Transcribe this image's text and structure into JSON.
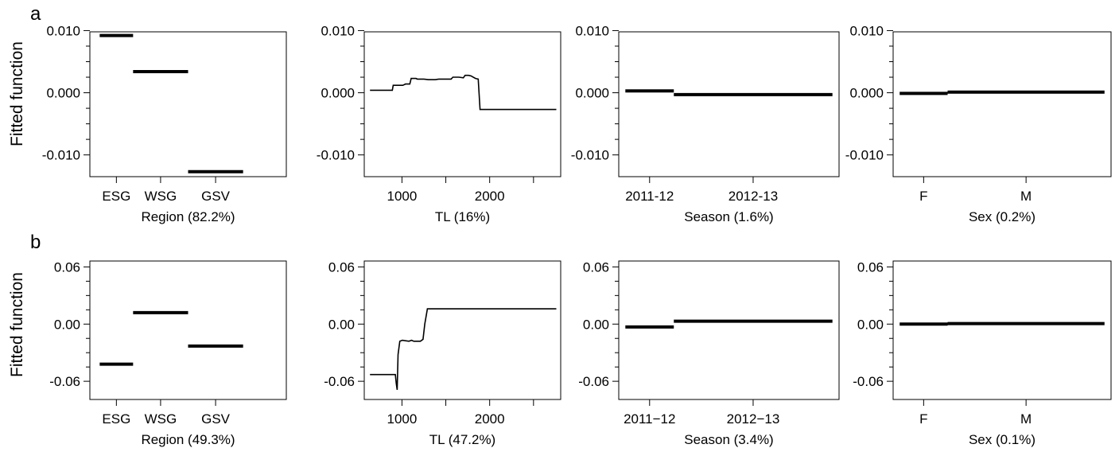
{
  "figure": {
    "ylabel": "Fitted function"
  },
  "rows": [
    {
      "letter": "a",
      "yticks": [
        {
          "value": 0.01,
          "label": "0.010"
        },
        {
          "value": 0.0,
          "label": "0.000"
        },
        {
          "value": -0.01,
          "label": "-0.010"
        }
      ]
    },
    {
      "letter": "b",
      "yticks": [
        {
          "value": 0.06,
          "label": "0.06"
        },
        {
          "value": 0.0,
          "label": "0.00"
        },
        {
          "value": -0.06,
          "label": "-0.06"
        }
      ]
    }
  ],
  "chart_data": [
    {
      "panel": "a1",
      "type": "step-categorical",
      "xlabel": "Region  (82.2%)",
      "ylabel": "Fitted function",
      "ylim": [
        -0.0135,
        0.0098
      ],
      "categories": [
        "ESG",
        "WSG",
        "GSV"
      ],
      "values": [
        0.0092,
        0.0034,
        -0.0127
      ]
    },
    {
      "panel": "a2",
      "type": "line",
      "xlabel": "TL  (16%)",
      "ylim": [
        -0.0135,
        0.0098
      ],
      "xlim": [
        570,
        2810
      ],
      "xticks": [
        {
          "value": 1000,
          "label": "1000"
        },
        {
          "value": 1500,
          "label": ""
        },
        {
          "value": 2000,
          "label": "2000"
        },
        {
          "value": 2500,
          "label": ""
        }
      ],
      "x": [
        635,
        890,
        900,
        1010,
        1040,
        1090,
        1105,
        1160,
        1175,
        1250,
        1300,
        1380,
        1420,
        1500,
        1560,
        1580,
        1650,
        1700,
        1720,
        1760,
        1790,
        1800,
        1840,
        1870,
        1890,
        1905,
        2760
      ],
      "y": [
        0.0004,
        0.0004,
        0.0012,
        0.0012,
        0.0014,
        0.0014,
        0.0023,
        0.0023,
        0.0022,
        0.0022,
        0.0021,
        0.0021,
        0.0022,
        0.0022,
        0.0022,
        0.0025,
        0.0025,
        0.0024,
        0.0028,
        0.0028,
        0.0027,
        0.0026,
        0.0023,
        0.0022,
        -0.0027,
        -0.0027,
        -0.0027
      ]
    },
    {
      "panel": "a3",
      "type": "step-categorical",
      "xlabel": "Season  (1.6%)",
      "ylim": [
        -0.0135,
        0.0098
      ],
      "categories": [
        "2011-12",
        "2012-13"
      ],
      "values": [
        0.0003,
        -0.0003
      ]
    },
    {
      "panel": "a4",
      "type": "step-categorical",
      "xlabel": "Sex  (0.2%)",
      "ylim": [
        -0.0135,
        0.0098
      ],
      "categories": [
        "F",
        "M"
      ],
      "values": [
        -0.0001,
        0.0001
      ]
    },
    {
      "panel": "b1",
      "type": "step-categorical",
      "xlabel": "Region  (49.3%)",
      "ylabel": "Fitted function",
      "ylim": [
        -0.0791,
        0.0662
      ],
      "categories": [
        "ESG",
        "WSG",
        "GSV"
      ],
      "values": [
        -0.042,
        0.012,
        -0.023
      ]
    },
    {
      "panel": "b2",
      "type": "line",
      "xlabel": "TL  (47.2%)",
      "ylim": [
        -0.0791,
        0.0662
      ],
      "xlim": [
        570,
        2810
      ],
      "xticks": [
        {
          "value": 1000,
          "label": "1000"
        },
        {
          "value": 1500,
          "label": ""
        },
        {
          "value": 2000,
          "label": "2000"
        },
        {
          "value": 2500,
          "label": ""
        }
      ],
      "x": [
        635,
        925,
        935,
        945,
        955,
        975,
        1005,
        1080,
        1110,
        1135,
        1210,
        1240,
        1260,
        1290,
        1310,
        2760
      ],
      "y": [
        -0.053,
        -0.053,
        -0.062,
        -0.069,
        -0.032,
        -0.018,
        -0.017,
        -0.018,
        -0.017,
        -0.018,
        -0.018,
        -0.016,
        0.0,
        0.016,
        0.016,
        0.016
      ]
    },
    {
      "panel": "b3",
      "type": "step-categorical",
      "xlabel": "Season  (3.4%)",
      "ylim": [
        -0.0791,
        0.0662
      ],
      "categories": [
        "2011−12",
        "2012−13"
      ],
      "values": [
        -0.003,
        0.003
      ]
    },
    {
      "panel": "b4",
      "type": "step-categorical",
      "xlabel": "Sex (0.1%)",
      "ylim": [
        -0.0791,
        0.0662
      ],
      "categories": [
        "F",
        "M"
      ],
      "values": [
        0.0,
        0.0005
      ]
    }
  ]
}
